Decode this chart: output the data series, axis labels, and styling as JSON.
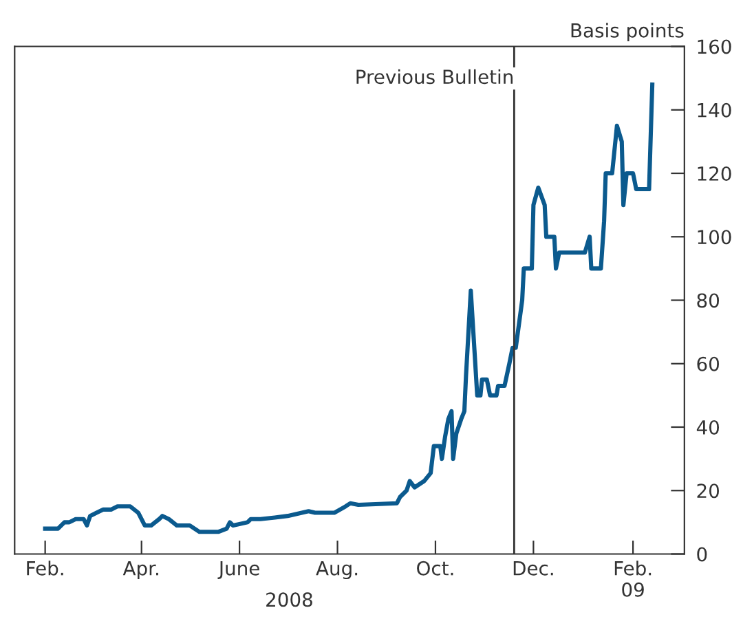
{
  "chart_data": {
    "type": "line",
    "ylabel": "Basis points",
    "xlabel": "2008",
    "x": [
      "2008-02-01",
      "2008-02-09",
      "2008-02-13",
      "2008-02-16",
      "2008-02-20",
      "2008-02-25",
      "2008-02-27",
      "2008-02-29",
      "2008-03-04",
      "2008-03-08",
      "2008-03-13",
      "2008-03-17",
      "2008-03-25",
      "2008-03-30",
      "2008-04-03",
      "2008-04-07",
      "2008-04-12",
      "2008-04-14",
      "2008-04-18",
      "2008-04-23",
      "2008-05-01",
      "2008-05-07",
      "2008-05-19",
      "2008-05-24",
      "2008-05-26",
      "2008-05-28",
      "2008-06-06",
      "2008-06-08",
      "2008-06-14",
      "2008-06-23",
      "2008-07-01",
      "2008-07-14",
      "2008-07-18",
      "2008-07-30",
      "2008-08-06",
      "2008-08-09",
      "2008-08-14",
      "2008-09-07",
      "2008-09-09",
      "2008-09-13",
      "2008-09-15",
      "2008-09-18",
      "2008-09-24",
      "2008-09-28",
      "2008-09-30",
      "2008-10-04",
      "2008-10-05",
      "2008-10-07",
      "2008-10-09",
      "2008-10-11",
      "2008-10-12",
      "2008-10-14",
      "2008-10-17",
      "2008-10-19",
      "2008-10-20",
      "2008-10-23",
      "2008-10-27",
      "2008-10-29",
      "2008-10-30",
      "2008-11-02",
      "2008-11-04",
      "2008-11-08",
      "2008-11-09",
      "2008-11-13",
      "2008-11-16",
      "2008-11-18",
      "2008-11-20",
      "2008-11-24",
      "2008-11-25",
      "2008-11-30",
      "2008-12-01",
      "2008-12-04",
      "2008-12-08",
      "2008-12-09",
      "2008-12-14",
      "2008-12-15",
      "2008-12-17",
      "2009-01-02",
      "2009-01-05",
      "2009-01-06",
      "2009-01-12",
      "2009-01-14",
      "2009-01-15",
      "2009-01-19",
      "2009-01-22",
      "2009-01-25",
      "2009-01-26",
      "2009-01-28",
      "2009-02-01",
      "2009-02-03",
      "2009-02-11",
      "2009-02-13"
    ],
    "series": [
      {
        "color": "#0b5a8e",
        "values": [
          8,
          8,
          10,
          10,
          11,
          11,
          9,
          12,
          13,
          14,
          14,
          15,
          15,
          13,
          9,
          9,
          11,
          12,
          11,
          9,
          9,
          7,
          7,
          8,
          10,
          9,
          10,
          11,
          11,
          11.5,
          12,
          13.5,
          13,
          13,
          15,
          16,
          15.5,
          16,
          18,
          20,
          23,
          21,
          23,
          25.5,
          34,
          34,
          30,
          37,
          42.5,
          45,
          30,
          38,
          42.5,
          45,
          56,
          83,
          50,
          50,
          55,
          55,
          50,
          50,
          53,
          53,
          60,
          65,
          65,
          80,
          90,
          90,
          110,
          115.5,
          110,
          100,
          100,
          90,
          95,
          95,
          100,
          90,
          90,
          105,
          120,
          120,
          135,
          130,
          110,
          120,
          120,
          115,
          115,
          148
        ]
      }
    ],
    "xlim": [
      "2008-01-13",
      "2009-03-05"
    ],
    "xticks": [
      {
        "value": "2008-02-01",
        "label": "Feb."
      },
      {
        "value": "2008-04-01",
        "label": "Apr."
      },
      {
        "value": "2008-06-01",
        "label": "June"
      },
      {
        "value": "2008-08-01",
        "label": "Aug."
      },
      {
        "value": "2008-10-01",
        "label": "Oct."
      },
      {
        "value": "2008-12-01",
        "label": "Dec."
      },
      {
        "value": "2009-02-01",
        "label": "Feb.\n09"
      }
    ],
    "ylim": [
      0,
      160
    ],
    "yticks": [
      0,
      20,
      40,
      60,
      80,
      100,
      120,
      140,
      160
    ],
    "ref_lines": [
      {
        "axis": "x",
        "value": "2008-11-19",
        "label": "Previous Bulletin",
        "color": "#333333",
        "line_style": "solid"
      }
    ],
    "grid": false,
    "legend": false,
    "marker": "none",
    "line_style": "solid"
  }
}
